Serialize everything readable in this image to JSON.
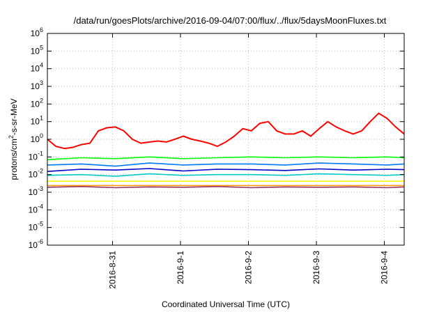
{
  "chart_data": {
    "type": "line",
    "title": "/data/run/goesPlots/archive/2016-09-04/07:00/flux/../flux/5daysMoonFluxes.txt",
    "xlabel": "Coordinated Universal Time (UTC)",
    "ylabel_parts": [
      "protons/cm",
      "2",
      "-s-sr-MeV"
    ],
    "y_scale": "log",
    "ylim": [
      1e-06,
      1000000.0
    ],
    "y_ticks": [
      {
        "base": "10",
        "exp": "-6"
      },
      {
        "base": "10",
        "exp": "-5"
      },
      {
        "base": "10",
        "exp": "-4"
      },
      {
        "base": "10",
        "exp": "-3"
      },
      {
        "base": "10",
        "exp": "-2"
      },
      {
        "base": "10",
        "exp": "-1"
      },
      {
        "base": "10",
        "exp": "0"
      },
      {
        "base": "10",
        "exp": "1"
      },
      {
        "base": "10",
        "exp": "2"
      },
      {
        "base": "10",
        "exp": "3"
      },
      {
        "base": "10",
        "exp": "4"
      },
      {
        "base": "10",
        "exp": "5"
      },
      {
        "base": "10",
        "exp": "6"
      }
    ],
    "xlim": [
      "2016-08-30T01:00",
      "2016-09-04T07:00"
    ],
    "x_ticks": [
      "2016-8-31",
      "2016-9-1",
      "2016-9-2",
      "2016-9-3",
      "2016-9-4"
    ],
    "grid": true,
    "series": [
      {
        "color": "#ff0000",
        "x": [
          "2016-08-30T01:00",
          "2016-08-30T04:00",
          "2016-08-30T07:00",
          "2016-08-30T10:00",
          "2016-08-30T13:00",
          "2016-08-30T16:00",
          "2016-08-30T19:00",
          "2016-08-30T22:00",
          "2016-08-31T01:00",
          "2016-08-31T04:00",
          "2016-08-31T07:00",
          "2016-08-31T10:00",
          "2016-08-31T13:00",
          "2016-08-31T16:00",
          "2016-08-31T19:00",
          "2016-08-31T22:00",
          "2016-09-01T01:00",
          "2016-09-01T04:00",
          "2016-09-01T07:00",
          "2016-09-01T10:00",
          "2016-09-01T13:00",
          "2016-09-01T16:00",
          "2016-09-01T19:00",
          "2016-09-01T22:00",
          "2016-09-02T01:00",
          "2016-09-02T04:00",
          "2016-09-02T07:00",
          "2016-09-02T10:00",
          "2016-09-02T13:00",
          "2016-09-02T16:00",
          "2016-09-02T19:00",
          "2016-09-02T22:00",
          "2016-09-03T01:00",
          "2016-09-03T04:00",
          "2016-09-03T07:00",
          "2016-09-03T10:00",
          "2016-09-03T13:00",
          "2016-09-03T16:00",
          "2016-09-03T19:00",
          "2016-09-03T22:00",
          "2016-09-04T01:00",
          "2016-09-04T04:00",
          "2016-09-04T07:00"
        ],
        "values": [
          1.0,
          0.4,
          0.3,
          0.35,
          0.5,
          0.6,
          3.0,
          4.5,
          5.0,
          3.0,
          1.0,
          0.6,
          0.7,
          0.8,
          0.7,
          1.0,
          1.5,
          1.0,
          0.8,
          0.6,
          0.4,
          0.7,
          1.5,
          4.0,
          3.0,
          8.0,
          10.0,
          3.0,
          2.0,
          2.0,
          3.0,
          1.5,
          4.0,
          10.0,
          5.0,
          3.0,
          2.0,
          3.0,
          10.0,
          30.0,
          15.0,
          5.0,
          2.0
        ]
      },
      {
        "color": "#00ff00",
        "x": [
          "2016-08-30T01:00",
          "2016-08-30T13:00",
          "2016-08-31T01:00",
          "2016-08-31T13:00",
          "2016-09-01T01:00",
          "2016-09-01T13:00",
          "2016-09-02T01:00",
          "2016-09-02T13:00",
          "2016-09-03T01:00",
          "2016-09-03T13:00",
          "2016-09-04T01:00",
          "2016-09-04T07:00"
        ],
        "values": [
          0.07,
          0.09,
          0.08,
          0.1,
          0.08,
          0.09,
          0.1,
          0.09,
          0.1,
          0.09,
          0.1,
          0.09
        ]
      },
      {
        "color": "#0077ff",
        "x": [
          "2016-08-30T01:00",
          "2016-08-30T13:00",
          "2016-08-31T01:00",
          "2016-08-31T13:00",
          "2016-09-01T01:00",
          "2016-09-01T13:00",
          "2016-09-02T01:00",
          "2016-09-02T13:00",
          "2016-09-03T01:00",
          "2016-09-03T13:00",
          "2016-09-04T01:00",
          "2016-09-04T07:00"
        ],
        "values": [
          0.035,
          0.04,
          0.03,
          0.045,
          0.035,
          0.04,
          0.04,
          0.035,
          0.045,
          0.04,
          0.035,
          0.04
        ]
      },
      {
        "color": "#0000cc",
        "x": [
          "2016-08-30T01:00",
          "2016-08-30T13:00",
          "2016-08-31T01:00",
          "2016-08-31T13:00",
          "2016-09-01T01:00",
          "2016-09-01T13:00",
          "2016-09-02T01:00",
          "2016-09-02T13:00",
          "2016-09-03T01:00",
          "2016-09-03T13:00",
          "2016-09-04T01:00",
          "2016-09-04T07:00"
        ],
        "values": [
          0.015,
          0.02,
          0.018,
          0.022,
          0.016,
          0.02,
          0.019,
          0.017,
          0.021,
          0.018,
          0.02,
          0.019
        ]
      },
      {
        "color": "#00cccc",
        "x": [
          "2016-08-30T01:00",
          "2016-08-30T13:00",
          "2016-08-31T01:00",
          "2016-08-31T13:00",
          "2016-09-01T01:00",
          "2016-09-01T13:00",
          "2016-09-02T01:00",
          "2016-09-02T13:00",
          "2016-09-03T01:00",
          "2016-09-03T13:00",
          "2016-09-04T01:00",
          "2016-09-04T07:00"
        ],
        "values": [
          0.009,
          0.01,
          0.008,
          0.011,
          0.009,
          0.01,
          0.01,
          0.009,
          0.011,
          0.01,
          0.009,
          0.01
        ]
      },
      {
        "color": "#ffff00",
        "x": [
          "2016-08-30T01:00",
          "2016-08-31T01:00",
          "2016-09-01T01:00",
          "2016-09-02T01:00",
          "2016-09-03T01:00",
          "2016-09-04T01:00",
          "2016-09-04T07:00"
        ],
        "values": [
          0.0042,
          0.0042,
          0.0042,
          0.0042,
          0.0042,
          0.0042,
          0.0042
        ]
      },
      {
        "color": "#ff9900",
        "x": [
          "2016-08-30T01:00",
          "2016-08-31T01:00",
          "2016-09-01T01:00",
          "2016-09-02T01:00",
          "2016-09-03T01:00",
          "2016-09-04T01:00",
          "2016-09-04T07:00"
        ],
        "values": [
          0.0024,
          0.0024,
          0.0024,
          0.0024,
          0.0024,
          0.0024,
          0.0024
        ]
      },
      {
        "color": "#993366",
        "x": [
          "2016-08-30T01:00",
          "2016-08-30T13:00",
          "2016-08-31T01:00",
          "2016-08-31T13:00",
          "2016-09-01T01:00",
          "2016-09-01T13:00",
          "2016-09-02T01:00",
          "2016-09-02T13:00",
          "2016-09-03T01:00",
          "2016-09-03T13:00",
          "2016-09-04T01:00",
          "2016-09-04T07:00"
        ],
        "values": [
          0.0019,
          0.0021,
          0.0018,
          0.002,
          0.0019,
          0.0021,
          0.0018,
          0.002,
          0.0019,
          0.002,
          0.0018,
          0.002
        ]
      }
    ]
  }
}
